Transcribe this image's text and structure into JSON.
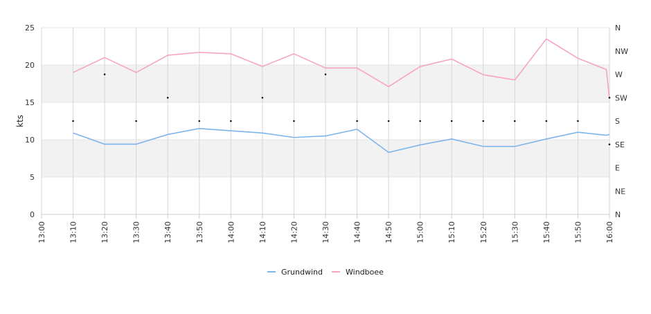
{
  "chart_data": {
    "type": "line",
    "title": "",
    "xlabel": "",
    "ylabel": "kts",
    "ylim": [
      0,
      25
    ],
    "yticks": [
      0,
      5,
      10,
      15,
      20,
      25
    ],
    "y2_ticks": [
      "N",
      "NW",
      "W",
      "SW",
      "S",
      "SE",
      "E",
      "NE",
      "N"
    ],
    "x_ticks": [
      "13:00",
      "13:10",
      "13:20",
      "13:30",
      "13:40",
      "13:50",
      "14:00",
      "14:10",
      "14:20",
      "14:30",
      "14:40",
      "14:50",
      "15:00",
      "15:10",
      "15:20",
      "15:30",
      "15:40",
      "15:50",
      "16:00"
    ],
    "grid": true,
    "bands": [
      [
        5,
        10
      ],
      [
        15,
        20
      ]
    ],
    "legend_position": "bottom",
    "x": [
      "13:10",
      "13:20",
      "13:30",
      "13:40",
      "13:50",
      "14:00",
      "14:10",
      "14:20",
      "14:30",
      "14:40",
      "14:50",
      "15:00",
      "15:10",
      "15:20",
      "15:30",
      "15:40",
      "15:50",
      "15:59",
      "16:00"
    ],
    "series": [
      {
        "name": "Grundwind",
        "color": "#7cb5ec",
        "values": [
          10.9,
          9.4,
          9.4,
          10.7,
          11.5,
          11.2,
          10.9,
          10.3,
          10.5,
          11.4,
          8.3,
          9.3,
          10.1,
          9.1,
          9.1,
          10.1,
          11.0,
          10.6,
          10.7
        ]
      },
      {
        "name": "Windboee",
        "color": "#f7a3c8",
        "values": [
          19.0,
          21.0,
          19.0,
          21.3,
          21.7,
          21.5,
          19.8,
          21.5,
          19.6,
          19.6,
          17.1,
          19.8,
          20.8,
          18.7,
          18.0,
          23.5,
          20.9,
          19.4,
          15.5
        ]
      }
    ],
    "direction_points": {
      "x": [
        "13:10",
        "13:20",
        "13:30",
        "13:40",
        "13:50",
        "14:00",
        "14:10",
        "14:20",
        "14:30",
        "14:40",
        "14:50",
        "15:00",
        "15:10",
        "15:20",
        "15:30",
        "15:40",
        "15:50",
        "16:00",
        "16:00"
      ],
      "directions": [
        "S",
        "W",
        "S",
        "SW",
        "S",
        "S",
        "SW",
        "S",
        "W",
        "S",
        "S",
        "S",
        "S",
        "S",
        "S",
        "S",
        "S",
        "SW",
        "SE"
      ]
    }
  }
}
